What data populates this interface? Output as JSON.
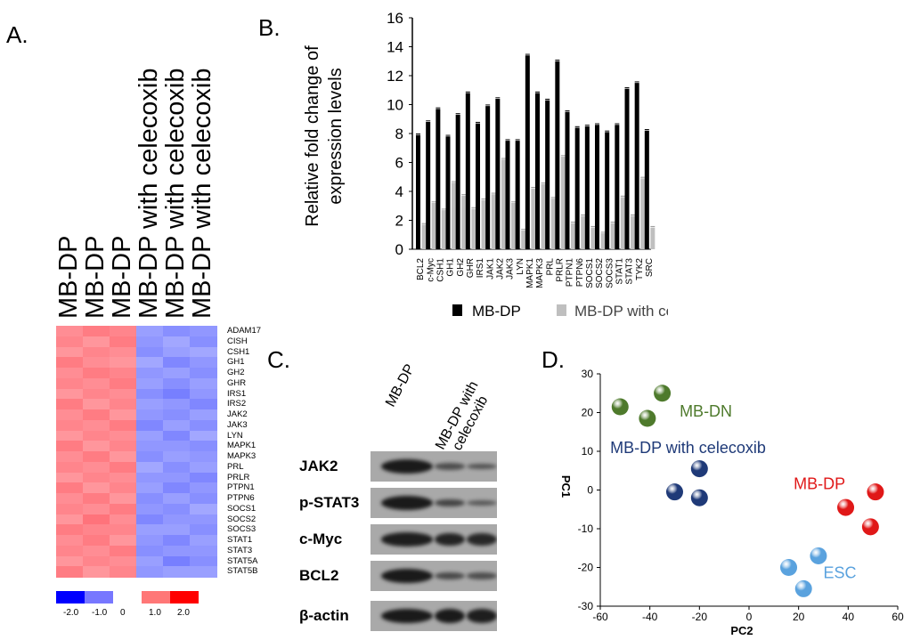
{
  "panels": {
    "a": "A.",
    "b": "B.",
    "c": "C.",
    "d": "D."
  },
  "heatmap": {
    "columns": [
      "MB-DP",
      "MB-DP",
      "MB-DP",
      "MB-DP with celecoxib",
      "MB-DP with celecoxib",
      "MB-DP with celecoxib"
    ],
    "genes": [
      "ADAM17",
      "CISH",
      "CSH1",
      "GH1",
      "GH2",
      "GHR",
      "IRS1",
      "IRS2",
      "JAK2",
      "JAK3",
      "LYN",
      "MAPK1",
      "MAPK3",
      "PRL",
      "PRLR",
      "PTPN1",
      "PTPN6",
      "SOCS1",
      "SOCS2",
      "SOCS3",
      "STAT1",
      "STAT3",
      "STAT5A",
      "STAT5B"
    ],
    "values": [
      [
        1.3,
        1.5,
        1.4,
        -1.2,
        -1.4,
        -1.3
      ],
      [
        1.4,
        1.2,
        1.5,
        -1.3,
        -1.1,
        -1.4
      ],
      [
        1.2,
        1.4,
        1.3,
        -1.4,
        -1.2,
        -1.1
      ],
      [
        1.5,
        1.3,
        1.2,
        -1.1,
        -1.5,
        -1.3
      ],
      [
        1.3,
        1.5,
        1.4,
        -1.3,
        -1.2,
        -1.4
      ],
      [
        1.4,
        1.3,
        1.5,
        -1.2,
        -1.4,
        -1.2
      ],
      [
        1.2,
        1.4,
        1.3,
        -1.4,
        -1.6,
        -1.3
      ],
      [
        1.5,
        1.2,
        1.4,
        -1.2,
        -1.3,
        -1.5
      ],
      [
        1.3,
        1.5,
        1.2,
        -1.3,
        -1.4,
        -1.2
      ],
      [
        1.4,
        1.3,
        1.5,
        -1.5,
        -1.2,
        -1.4
      ],
      [
        1.2,
        1.4,
        1.3,
        -1.2,
        -1.5,
        -1.1
      ],
      [
        1.5,
        1.2,
        1.4,
        -1.3,
        -1.3,
        -1.4
      ],
      [
        1.3,
        1.5,
        1.2,
        -1.4,
        -1.2,
        -1.3
      ],
      [
        1.4,
        1.3,
        1.5,
        -1.1,
        -1.4,
        -1.2
      ],
      [
        1.2,
        1.4,
        1.3,
        -1.3,
        -1.3,
        -1.5
      ],
      [
        1.5,
        1.2,
        1.4,
        -1.2,
        -1.5,
        -1.3
      ],
      [
        1.3,
        1.5,
        1.2,
        -1.4,
        -1.2,
        -1.4
      ],
      [
        1.4,
        1.3,
        1.5,
        -1.3,
        -1.4,
        -1.1
      ],
      [
        1.2,
        1.6,
        1.3,
        -1.5,
        -1.3,
        -1.3
      ],
      [
        1.5,
        1.4,
        1.4,
        -1.2,
        -1.2,
        -1.4
      ],
      [
        1.3,
        1.5,
        1.2,
        -1.3,
        -1.5,
        -1.2
      ],
      [
        1.4,
        1.3,
        1.5,
        -1.4,
        -1.3,
        -1.3
      ],
      [
        1.2,
        1.4,
        1.3,
        -1.2,
        -1.6,
        -1.4
      ],
      [
        1.5,
        1.2,
        1.4,
        -1.3,
        -1.2,
        -1.2
      ]
    ],
    "scale": {
      "labels": [
        "-2.0",
        "-1.0",
        "0",
        "1.0",
        "2.0"
      ],
      "colors": [
        "#0000ff",
        "#7777ff",
        "#ffffff",
        "#ff7777",
        "#ff0000"
      ]
    }
  },
  "chart_data": [
    {
      "type": "bar",
      "title": "",
      "xlabel": "",
      "ylabel": "Relative fold change of expression levels",
      "ylim": [
        0,
        16
      ],
      "yticks": [
        "0",
        "2",
        "4",
        "6",
        "8",
        "10",
        "12",
        "14",
        "16"
      ],
      "categories": [
        "BCL2",
        "c-Myc",
        "CSH1",
        "GH1",
        "GH2",
        "GHR",
        "IRS1",
        "JAK1",
        "JAK2",
        "JAK3",
        "LYN",
        "MAPK1",
        "MAPK3",
        "PRL",
        "PRLR",
        "PTPN1",
        "PTPN6",
        "SOCS1",
        "SOCS2",
        "SOCS3",
        "STAT1",
        "STAT3",
        "TYK2",
        "SRC"
      ],
      "series": [
        {
          "name": "MB-DP",
          "color": "#000000",
          "values": [
            7.9,
            8.8,
            9.7,
            7.8,
            9.3,
            10.8,
            8.7,
            9.9,
            10.4,
            7.5,
            7.5,
            13.4,
            10.8,
            10.3,
            13.0,
            9.5,
            8.4,
            8.5,
            8.6,
            8.1,
            8.6,
            11.1,
            11.5,
            8.2
          ]
        },
        {
          "name": "MB-DP with celecoxib",
          "color": "#bfbfbf",
          "values": [
            1.7,
            3.2,
            2.7,
            4.6,
            3.7,
            2.8,
            3.4,
            3.8,
            6.2,
            3.2,
            1.3,
            4.2,
            4.5,
            3.5,
            6.4,
            1.8,
            2.3,
            1.5,
            1.1,
            1.8,
            3.6,
            2.3,
            4.9,
            1.5
          ]
        }
      ],
      "legend": "bottom"
    },
    {
      "type": "scatter",
      "xlabel": "PC2",
      "ylabel": "PC1",
      "xlim": [
        -60,
        60
      ],
      "ylim": [
        -30,
        30
      ],
      "xticks": [
        "-60",
        "-40",
        "-20",
        "0",
        "20",
        "40",
        "60"
      ],
      "yticks": [
        "-30",
        "-20",
        "-10",
        "0",
        "10",
        "20",
        "30"
      ],
      "groups": [
        {
          "name": "MB-DN",
          "color": "#4e7a2c",
          "points": [
            [
              -52,
              21.5
            ],
            [
              -35,
              25
            ],
            [
              -41,
              18.5
            ]
          ]
        },
        {
          "name": "MB-DP with celecoxib",
          "color": "#1f3a78",
          "points": [
            [
              -20,
              5.5
            ],
            [
              -30,
              -0.5
            ],
            [
              -20,
              -2
            ]
          ]
        },
        {
          "name": "MB-DP",
          "color": "#e01818",
          "points": [
            [
              51,
              -0.5
            ],
            [
              39,
              -4.5
            ],
            [
              49,
              -9.5
            ]
          ]
        },
        {
          "name": "ESC",
          "color": "#5aa2de",
          "points": [
            [
              16,
              -20
            ],
            [
              28,
              -17
            ],
            [
              22,
              -25.5
            ]
          ]
        }
      ]
    }
  ],
  "western_blot": {
    "lanes": [
      "MB-DP",
      "MB-DP with",
      "celecoxib"
    ],
    "rows": [
      {
        "label": "JAK2",
        "intensities": [
          1.0,
          0.45,
          0.4
        ]
      },
      {
        "label": "p-STAT3",
        "intensities": [
          1.0,
          0.55,
          0.35
        ]
      },
      {
        "label": "c-Myc",
        "intensities": [
          0.95,
          0.9,
          0.85
        ]
      },
      {
        "label": "BCL2",
        "intensities": [
          1.0,
          0.5,
          0.45
        ]
      },
      {
        "label": "β-actin",
        "intensities": [
          1.0,
          1.0,
          0.95
        ]
      }
    ]
  }
}
